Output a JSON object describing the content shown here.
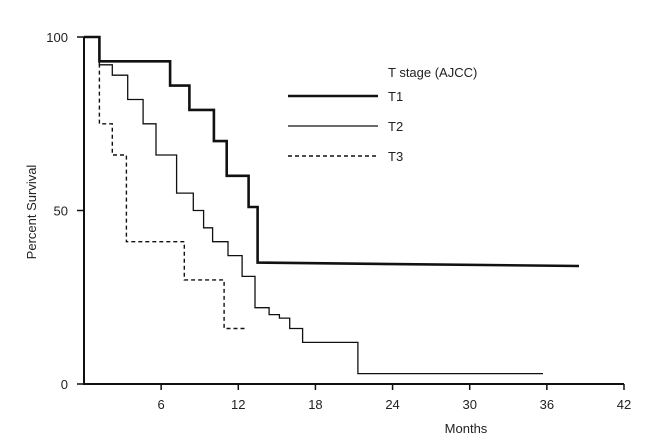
{
  "chart_data": {
    "type": "line",
    "step": true,
    "xlabel": "Months",
    "ylabel": "Percent Survival",
    "xlim": [
      0,
      42
    ],
    "ylim": [
      0,
      100
    ],
    "xticks": [
      6,
      12,
      18,
      24,
      30,
      36,
      42
    ],
    "yticks": [
      0,
      50,
      100
    ],
    "legend_title": "T stage (AJCC)",
    "legend_position": "top-right",
    "grid": false,
    "series": [
      {
        "name": "T1",
        "style": "thick-solid",
        "points": [
          [
            0,
            100
          ],
          [
            1.2,
            100
          ],
          [
            1.2,
            93
          ],
          [
            6.7,
            93
          ],
          [
            6.7,
            86
          ],
          [
            8.2,
            86
          ],
          [
            8.2,
            79
          ],
          [
            10.1,
            79
          ],
          [
            10.1,
            70
          ],
          [
            11.1,
            70
          ],
          [
            11.1,
            60
          ],
          [
            12.8,
            60
          ],
          [
            12.8,
            51
          ],
          [
            13.5,
            51
          ],
          [
            13.5,
            35
          ],
          [
            38.5,
            34
          ]
        ]
      },
      {
        "name": "T2",
        "style": "thin-solid",
        "points": [
          [
            0,
            100
          ],
          [
            1.2,
            100
          ],
          [
            1.2,
            92
          ],
          [
            2.2,
            92
          ],
          [
            2.2,
            89
          ],
          [
            3.4,
            89
          ],
          [
            3.4,
            82
          ],
          [
            4.6,
            82
          ],
          [
            4.6,
            75
          ],
          [
            5.6,
            75
          ],
          [
            5.6,
            66
          ],
          [
            7.2,
            66
          ],
          [
            7.2,
            55
          ],
          [
            8.5,
            55
          ],
          [
            8.5,
            50
          ],
          [
            9.3,
            50
          ],
          [
            9.3,
            45
          ],
          [
            10.0,
            45
          ],
          [
            10.0,
            41
          ],
          [
            11.2,
            41
          ],
          [
            11.2,
            37
          ],
          [
            12.3,
            37
          ],
          [
            12.3,
            31
          ],
          [
            13.3,
            31
          ],
          [
            13.3,
            22
          ],
          [
            14.4,
            22
          ],
          [
            14.4,
            20
          ],
          [
            15.2,
            20
          ],
          [
            15.2,
            19
          ],
          [
            16.0,
            19
          ],
          [
            16.0,
            16
          ],
          [
            17.0,
            16
          ],
          [
            17.0,
            12
          ],
          [
            21.3,
            12
          ],
          [
            21.3,
            3
          ],
          [
            35.7,
            3
          ]
        ]
      },
      {
        "name": "T3",
        "style": "dashed",
        "points": [
          [
            0,
            100
          ],
          [
            1.2,
            100
          ],
          [
            1.2,
            75
          ],
          [
            2.2,
            75
          ],
          [
            2.2,
            66
          ],
          [
            3.3,
            66
          ],
          [
            3.3,
            41
          ],
          [
            7.8,
            41
          ],
          [
            7.8,
            30
          ],
          [
            10.9,
            30
          ],
          [
            10.9,
            16
          ],
          [
            12.7,
            16
          ]
        ]
      }
    ]
  }
}
